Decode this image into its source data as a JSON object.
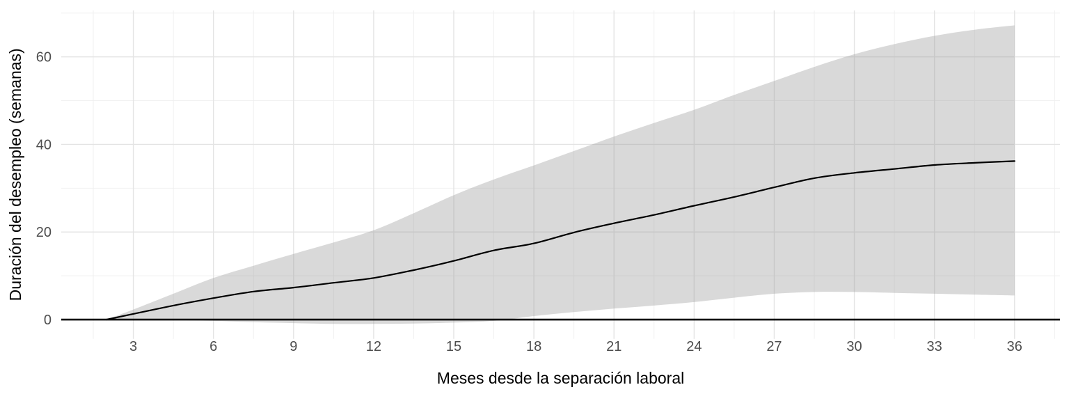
{
  "chart_data": {
    "type": "line",
    "title": "",
    "xlabel": "Meses desde la separación laboral",
    "ylabel": "Duración del desempleo (semanas)",
    "x": [
      2,
      3,
      4.5,
      6,
      7.5,
      9,
      10.5,
      12,
      13.5,
      15,
      16.5,
      18,
      19.5,
      21,
      22.5,
      24,
      25.5,
      27,
      28.5,
      30,
      31.5,
      33,
      34.5,
      36
    ],
    "series": [
      {
        "name": "duracion-estimada",
        "values": [
          0,
          1.3,
          3.2,
          4.9,
          6.4,
          7.3,
          8.4,
          9.5,
          11.3,
          13.4,
          15.8,
          17.4,
          19.9,
          22.0,
          23.9,
          26.0,
          28.0,
          30.2,
          32.3,
          33.5,
          34.4,
          35.3,
          35.8,
          36.2
        ]
      }
    ],
    "band": {
      "name": "intervalo-confianza",
      "lower": [
        0,
        -0.1,
        -0.1,
        -0.3,
        -0.6,
        -0.8,
        -1.0,
        -1.0,
        -0.9,
        -0.7,
        -0.3,
        0.8,
        1.7,
        2.5,
        3.2,
        4.0,
        5.0,
        5.9,
        6.3,
        6.3,
        6.1,
        5.9,
        5.7,
        5.5
      ],
      "upper": [
        0,
        2.3,
        5.9,
        9.5,
        12.3,
        15.0,
        17.6,
        20.4,
        24.3,
        28.4,
        32.0,
        35.2,
        38.5,
        41.8,
        44.9,
        47.9,
        51.3,
        54.5,
        57.7,
        60.6,
        62.9,
        64.8,
        66.2,
        67.2
      ]
    },
    "hline": 0,
    "x_ticks": [
      3,
      6,
      9,
      12,
      15,
      18,
      21,
      24,
      27,
      30,
      33,
      36
    ],
    "x_minor_ticks": [
      1.5,
      4.5,
      7.5,
      10.5,
      13.5,
      16.5,
      19.5,
      22.5,
      25.5,
      28.5,
      31.5,
      34.5,
      37.5
    ],
    "y_ticks": [
      0,
      20,
      40,
      60
    ],
    "y_minor_ticks": [
      10,
      30,
      50,
      70
    ],
    "xlim": [
      0.3,
      37.7
    ],
    "ylim": [
      -4.4,
      70.6
    ],
    "grid": "major+minor",
    "legend_position": "none"
  },
  "colors": {
    "line": "#000000",
    "ribbon": "#9C9C9C",
    "ribbon_opacity": "0.38",
    "grid_major": "#E4E4E4",
    "grid_minor": "#EFEFEF",
    "tick_label": "#4D4D4D",
    "axis_title": "#000000",
    "zero_line": "#000000",
    "background": "#FFFFFF"
  }
}
